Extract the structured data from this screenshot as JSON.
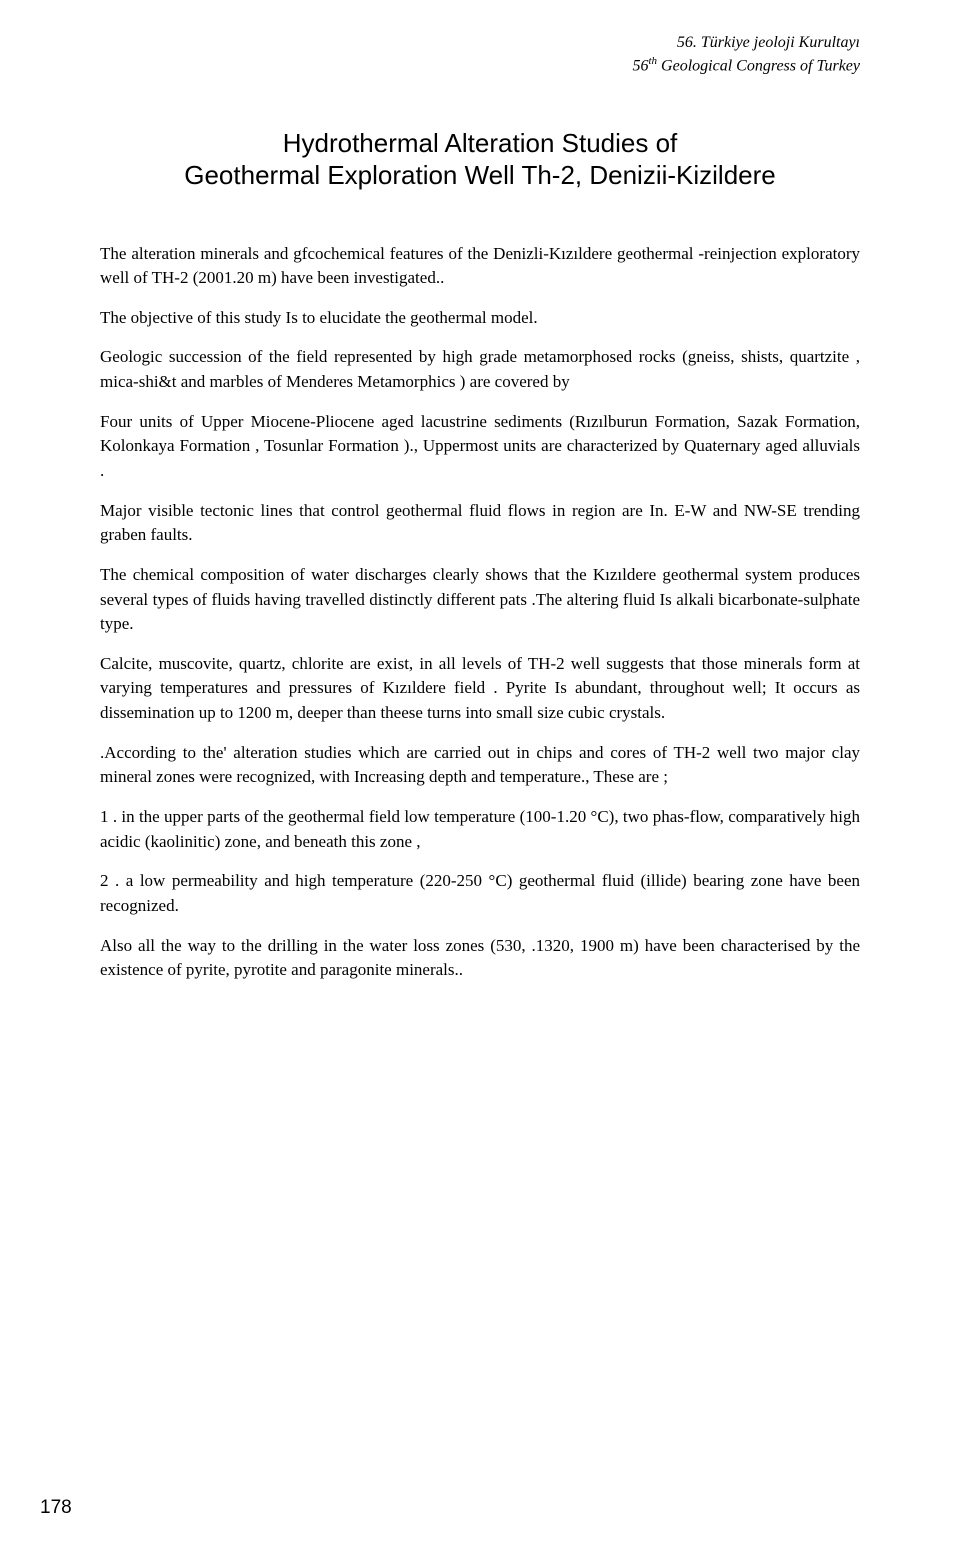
{
  "header": {
    "line1": "56. Türkiye jeoloji Kurultayı",
    "line2_a": "56",
    "line2_sup": "th",
    "line2_b": " Geological Congress of Turkey"
  },
  "title": {
    "line1": "Hydrothermal Alteration Studies of",
    "line2": "Geothermal Exploration Well Th-2, Denizii-Kizildere"
  },
  "paragraphs": {
    "p1": "The alteration minerals and gfcochemical features of the Denizli-Kızıldere geothermal -reinjection exploratory well of TH-2 (2001.20 m) have been investigated..",
    "p2": "The objective of this study Is to elucidate the geothermal model.",
    "p3": "Geologic succession of the field represented by high grade metamorphosed rocks (gneiss, shists, quartzite , mica-shi&t and marbles of Menderes Metamorphics ) are covered by",
    "p4": "Four units of Upper Miocene-Pliocene aged lacustrine sediments (Rızılburun Formation, Sazak Formation, Kolonkaya Formation , Tosunlar Formation )., Uppermost units are characterized by Quaternary aged alluvials .",
    "p5": "Major visible tectonic lines that control geothermal fluid flows in region are In. E-W and NW-SE trending graben faults.",
    "p6": "The chemical composition of water discharges clearly shows that the Kızıldere geothermal system produces several types of fluids having travelled distinctly different pats .The altering fluid Is alkali bicarbonate-sulphate type.",
    "p7": "Calcite, muscovite, quartz, chlorite are exist, in all levels of TH-2 well suggests that those minerals form at varying temperatures and pressures of Kızıldere field . Pyrite Is abundant, throughout well; It occurs as dissemination up to 1200 m, deeper than theese turns into small size cubic crystals.",
    "p8": ".According to the' alteration studies which are carried out in chips and cores of TH-2 well two major clay mineral zones were recognized, with Increasing depth and temperature., These are ;",
    "p9": "1 . in the upper parts of the geothermal field low temperature (100-1.20 °C), two phas-flow, comparatively high acidic (kaolinitic) zone, and beneath this zone ,",
    "p10": "2 . a low permeability and high temperature (220-250 °C) geothermal fluid (illide) bearing zone have been recognized.",
    "p11": "Also all the way to the drilling in the water loss zones (530, .1320, 1900 m) have been characterised by the existence of pyrite, pyrotite and paragonite minerals.."
  },
  "page_number": "178"
}
